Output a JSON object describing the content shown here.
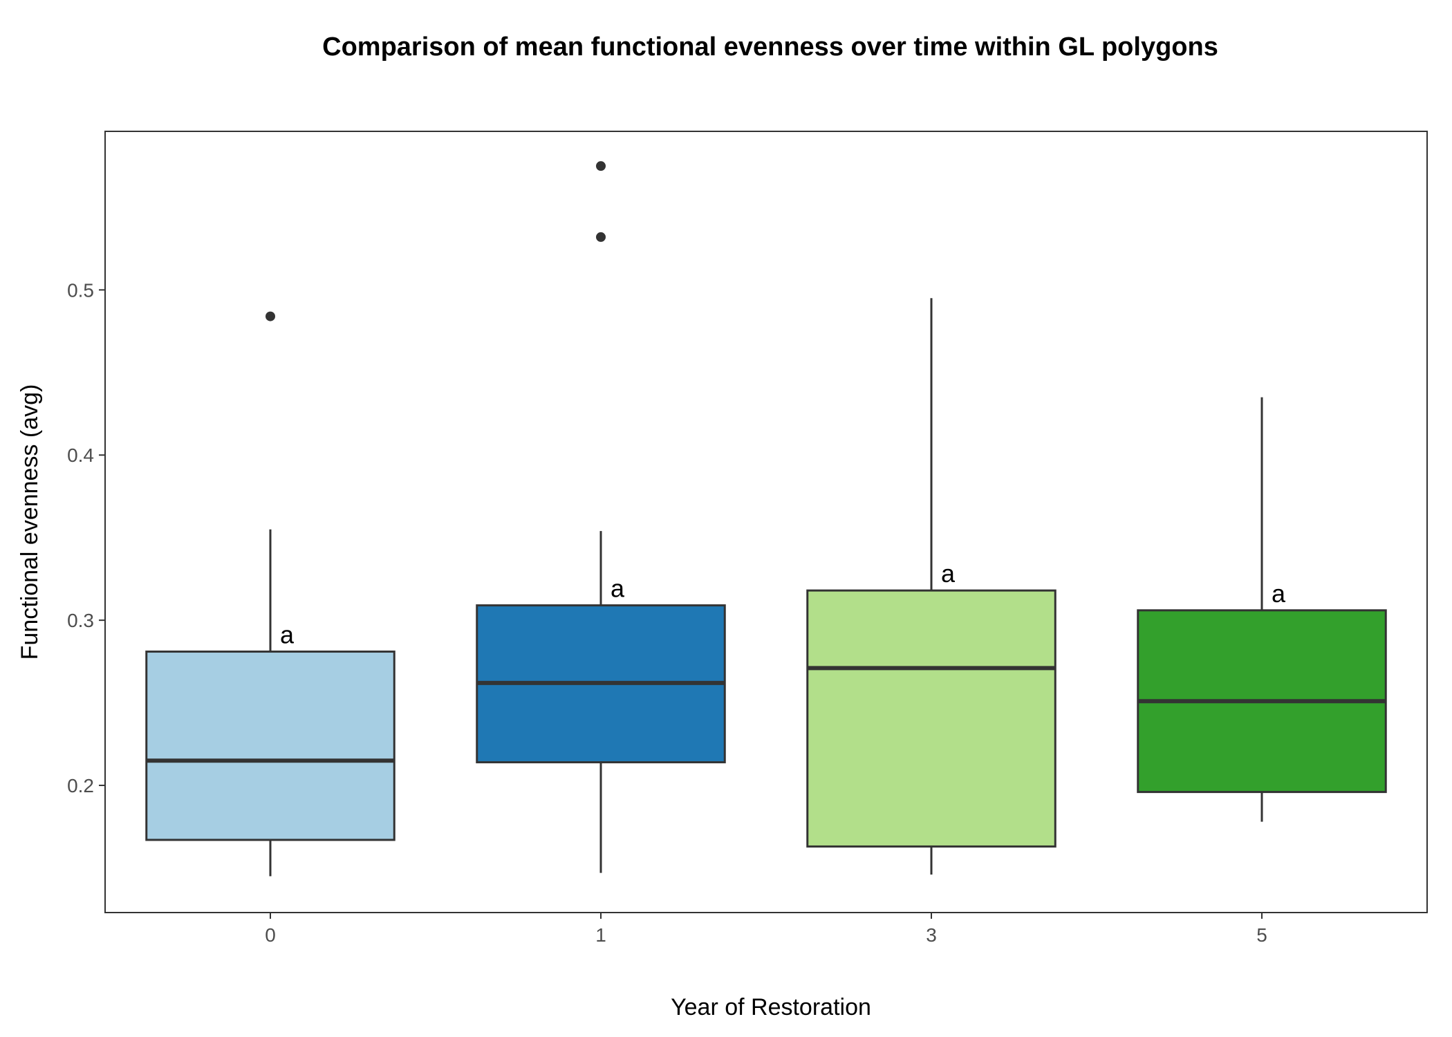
{
  "chart_data": {
    "type": "boxplot",
    "title": "Comparison of mean functional evenness over time within GL polygons",
    "xlabel": "Year of Restoration",
    "ylabel": "Functional evenness (avg)",
    "ylim": [
      0.123,
      0.596
    ],
    "yticks": [
      0.2,
      0.3,
      0.4,
      0.5
    ],
    "grid": false,
    "legend": "none",
    "categories": [
      "0",
      "1",
      "3",
      "5"
    ],
    "boxes": [
      {
        "category": "0",
        "whisker_low": 0.145,
        "q1": 0.167,
        "median": 0.215,
        "q3": 0.281,
        "whisker_high": 0.355,
        "outliers": [
          0.484
        ],
        "letter": "a",
        "color": "#a6cee3"
      },
      {
        "category": "1",
        "whisker_low": 0.147,
        "q1": 0.214,
        "median": 0.262,
        "q3": 0.309,
        "whisker_high": 0.354,
        "outliers": [
          0.532,
          0.575
        ],
        "letter": "a",
        "color": "#1f78b4"
      },
      {
        "category": "3",
        "whisker_low": 0.146,
        "q1": 0.163,
        "median": 0.271,
        "q3": 0.318,
        "whisker_high": 0.495,
        "outliers": [],
        "letter": "a",
        "color": "#b2df8a"
      },
      {
        "category": "5",
        "whisker_low": 0.178,
        "q1": 0.196,
        "median": 0.251,
        "q3": 0.306,
        "whisker_high": 0.435,
        "outliers": [],
        "letter": "a",
        "color": "#33a02c"
      }
    ],
    "line_color": "#333333",
    "panel_border_color": "#333333"
  }
}
